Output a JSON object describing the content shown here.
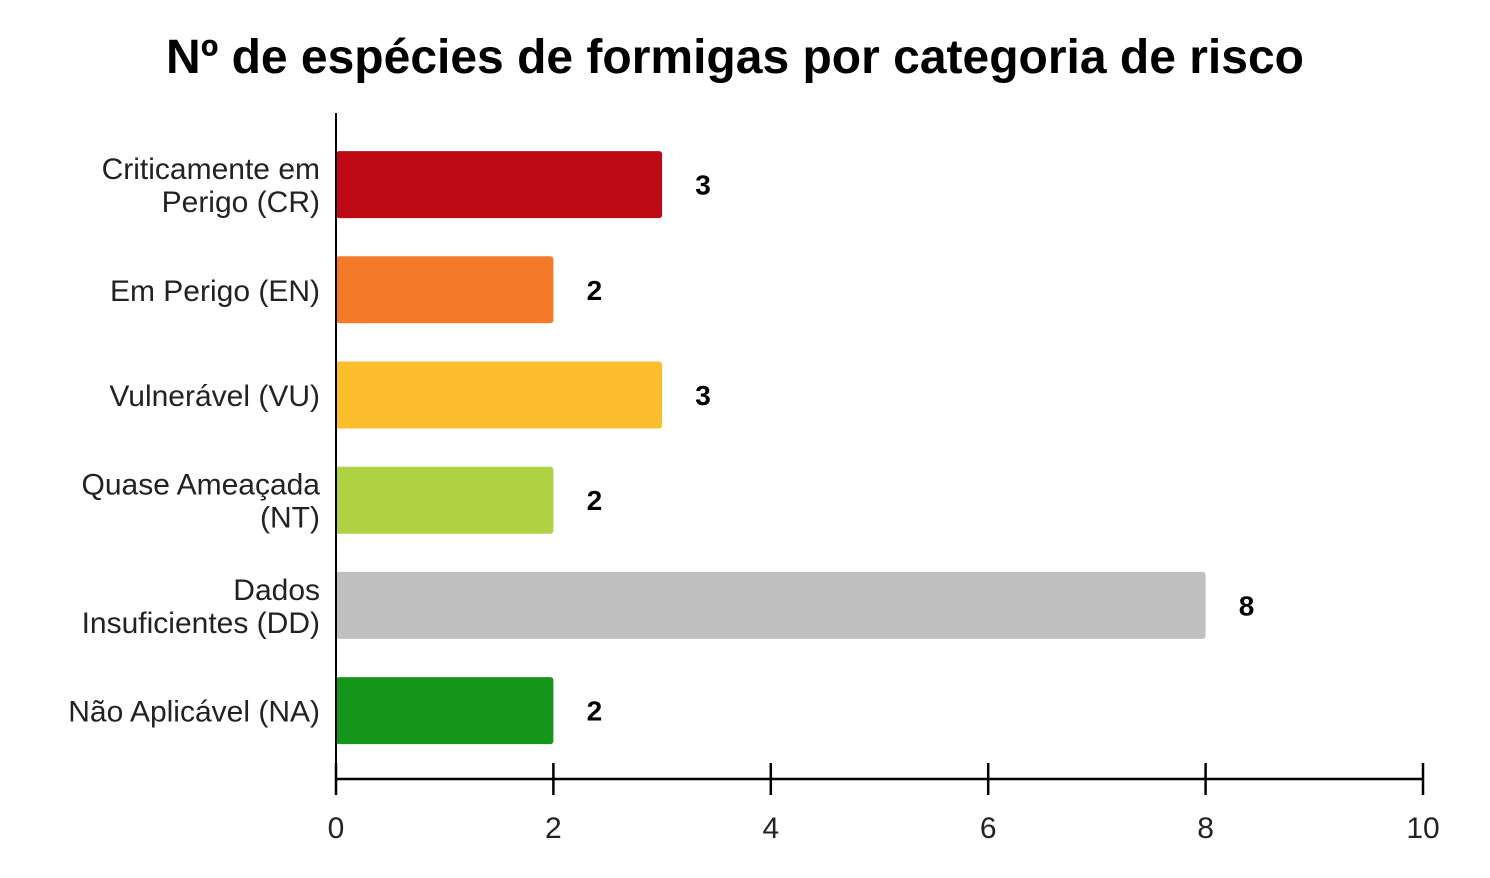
{
  "chart_data": {
    "type": "bar",
    "orientation": "horizontal",
    "title": "Nº de espécies de formigas por categoria de risco",
    "xlabel": "",
    "ylabel": "",
    "categories": [
      [
        "Criticamente em",
        "Perigo (CR)"
      ],
      [
        "Em Perigo (EN)"
      ],
      [
        "Vulnerável (VU)"
      ],
      [
        "Quase Ameaçada",
        "(NT)"
      ],
      [
        "Dados",
        "Insuficientes (DD)"
      ],
      [
        "Não Aplicável (NA)"
      ]
    ],
    "values": [
      3,
      2,
      3,
      2,
      8,
      2
    ],
    "colors": [
      "#bd0a15",
      "#f47a2a",
      "#fdbe2e",
      "#afd243",
      "#c0c0c0",
      "#15961b"
    ],
    "xlim": [
      0,
      10
    ],
    "xticks": [
      "0",
      "2",
      "4",
      "6",
      "8",
      "10"
    ],
    "grid": false,
    "data_labels": true
  }
}
